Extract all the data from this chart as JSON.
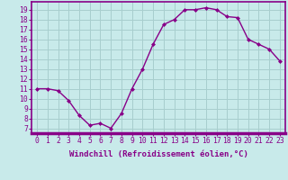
{
  "x": [
    0,
    1,
    2,
    3,
    4,
    5,
    6,
    7,
    8,
    9,
    10,
    11,
    12,
    13,
    14,
    15,
    16,
    17,
    18,
    19,
    20,
    21,
    22,
    23
  ],
  "y": [
    11.0,
    11.0,
    10.8,
    9.8,
    8.3,
    7.3,
    7.5,
    7.0,
    8.5,
    11.0,
    13.0,
    15.5,
    17.5,
    18.0,
    19.0,
    19.0,
    19.2,
    19.0,
    18.3,
    18.2,
    16.0,
    15.5,
    15.0,
    13.8
  ],
  "line_color": "#880088",
  "marker": "D",
  "marker_size": 2,
  "bg_color": "#c8eaea",
  "grid_color": "#a8cece",
  "xlabel": "Windchill (Refroidissement éolien,°C)",
  "ylabel_ticks": [
    7,
    8,
    9,
    10,
    11,
    12,
    13,
    14,
    15,
    16,
    17,
    18,
    19
  ],
  "xlim": [
    -0.5,
    23.5
  ],
  "ylim": [
    6.5,
    19.8
  ],
  "xlabel_fontsize": 6.5,
  "tick_fontsize": 5.8,
  "line_width": 1.0
}
